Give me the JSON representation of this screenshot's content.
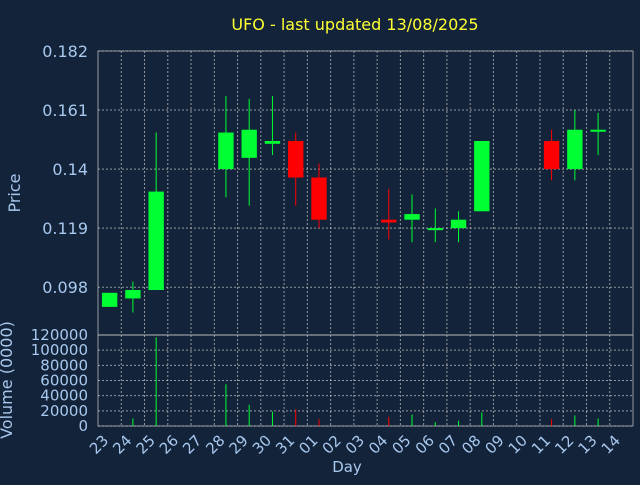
{
  "chart_data": {
    "type": "candlestick",
    "title": "UFO - last updated 13/08/2025",
    "price_panel": {
      "ylabel": "Price",
      "ylim": [
        0.081,
        0.182
      ],
      "yticks": [
        0.098,
        0.119,
        0.14,
        0.161,
        0.182
      ],
      "ytick_labels": [
        "0.098",
        "0.119",
        "0.14",
        "0.161",
        "0.182"
      ],
      "grid": true
    },
    "volume_panel": {
      "ylabel": "Volume (0000)",
      "ylim": [
        0,
        120000
      ],
      "yticks": [
        0,
        20000,
        40000,
        60000,
        80000,
        100000,
        120000
      ],
      "ytick_labels": [
        "0",
        "20000",
        "40000",
        "60000",
        "80000",
        "100000",
        "120000"
      ],
      "grid": true
    },
    "xlabel": "Day",
    "categories": [
      "23",
      "24",
      "25",
      "26",
      "27",
      "28",
      "29",
      "30",
      "31",
      "01",
      "02",
      "03",
      "04",
      "05",
      "06",
      "07",
      "08",
      "09",
      "10",
      "11",
      "12",
      "13",
      "14"
    ],
    "candles": [
      {
        "day": "23",
        "open": 0.091,
        "close": 0.096,
        "high": 0.096,
        "low": 0.091,
        "volume": 0
      },
      {
        "day": "24",
        "open": 0.094,
        "close": 0.097,
        "high": 0.1,
        "low": 0.089,
        "volume": 10000
      },
      {
        "day": "25",
        "open": 0.097,
        "close": 0.132,
        "high": 0.153,
        "low": 0.097,
        "volume": 117000
      },
      {
        "day": "28",
        "open": 0.14,
        "close": 0.153,
        "high": 0.166,
        "low": 0.13,
        "volume": 55000
      },
      {
        "day": "29",
        "open": 0.144,
        "close": 0.154,
        "high": 0.165,
        "low": 0.127,
        "volume": 28000
      },
      {
        "day": "30",
        "open": 0.149,
        "close": 0.15,
        "high": 0.166,
        "low": 0.145,
        "volume": 19000
      },
      {
        "day": "31",
        "open": 0.15,
        "close": 0.137,
        "high": 0.153,
        "low": 0.127,
        "volume": 22000
      },
      {
        "day": "01",
        "open": 0.137,
        "close": 0.122,
        "high": 0.142,
        "low": 0.119,
        "volume": 9000
      },
      {
        "day": "04",
        "open": 0.122,
        "close": 0.121,
        "high": 0.133,
        "low": 0.115,
        "volume": 12000
      },
      {
        "day": "05",
        "open": 0.122,
        "close": 0.124,
        "high": 0.131,
        "low": 0.114,
        "volume": 15000
      },
      {
        "day": "06",
        "open": 0.119,
        "close": 0.119,
        "high": 0.126,
        "low": 0.114,
        "volume": 5000
      },
      {
        "day": "07",
        "open": 0.119,
        "close": 0.122,
        "high": 0.125,
        "low": 0.114,
        "volume": 7000
      },
      {
        "day": "08",
        "open": 0.125,
        "close": 0.15,
        "high": 0.15,
        "low": 0.125,
        "volume": 18000
      },
      {
        "day": "11",
        "open": 0.15,
        "close": 0.14,
        "high": 0.154,
        "low": 0.136,
        "volume": 9000
      },
      {
        "day": "12",
        "open": 0.14,
        "close": 0.154,
        "high": 0.161,
        "low": 0.136,
        "volume": 14000
      },
      {
        "day": "13",
        "open": 0.154,
        "close": 0.154,
        "high": 0.16,
        "low": 0.145,
        "volume": 10000
      }
    ],
    "colors": {
      "background": "#13233a",
      "up": "#00ff33",
      "down": "#ff0000",
      "grid": "#c0c0c0",
      "axis_text": "#a8c8ee",
      "title_text": "#ffff33"
    }
  }
}
